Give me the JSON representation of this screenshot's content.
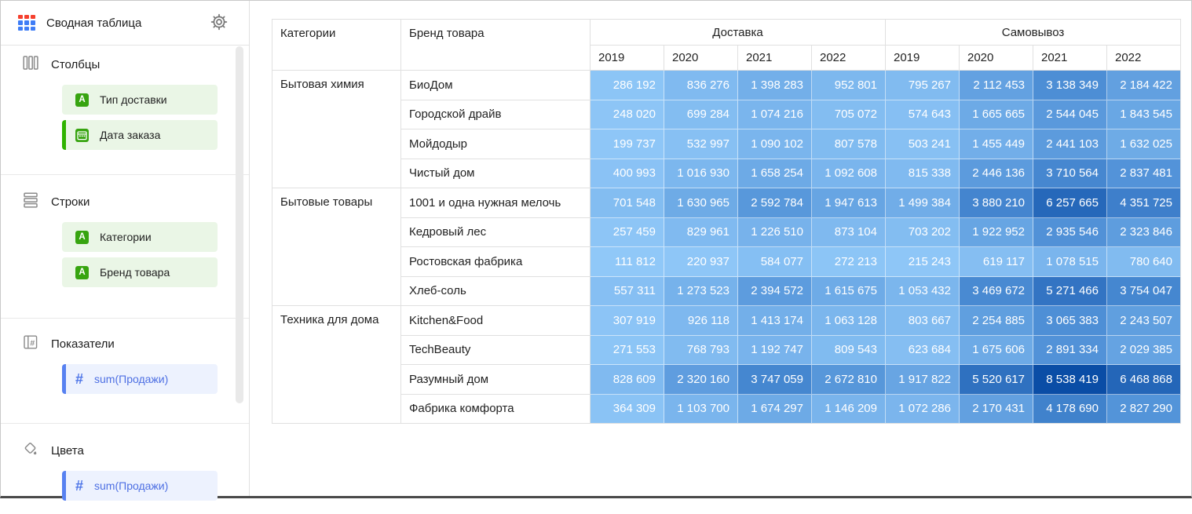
{
  "app": {
    "title": "Сводная таблица",
    "header": {
      "app_icon": "pivot-grid-icon",
      "settings_icon": "gear-icon"
    }
  },
  "sidebar": {
    "sections": [
      {
        "label": "Столбцы",
        "icon": "columns-icon",
        "fields": [
          {
            "label": "Тип доставки",
            "icon": "string-field-icon",
            "accent": false
          },
          {
            "label": "Дата заказа",
            "icon": "date-field-icon",
            "accent": true
          }
        ]
      },
      {
        "label": "Строки",
        "icon": "rows-icon",
        "fields": [
          {
            "label": "Категории",
            "icon": "string-field-icon",
            "accent": false
          },
          {
            "label": "Бренд товара",
            "icon": "string-field-icon",
            "accent": false
          }
        ]
      },
      {
        "label": "Показатели",
        "icon": "measures-icon",
        "fields": [
          {
            "label": "sum(Продажи)",
            "icon": "hash-icon",
            "accent": true
          }
        ]
      },
      {
        "label": "Цвета",
        "icon": "colors-icon",
        "fields": [
          {
            "label": "sum(Продажи)",
            "icon": "hash-icon",
            "accent": true
          }
        ]
      }
    ]
  },
  "pivot": {
    "corner_headers": [
      "Категории",
      "Бренд товара"
    ],
    "groups": [
      {
        "label": "Доставка",
        "years": [
          "2019",
          "2020",
          "2021",
          "2022"
        ]
      },
      {
        "label": "Самовывоз",
        "years": [
          "2019",
          "2020",
          "2021",
          "2022"
        ]
      }
    ],
    "menu_icon": "ellipsis-icon"
  },
  "chart_data": {
    "type": "table",
    "title": "Сводная таблица",
    "row_dimensions": [
      "Категории",
      "Бренд товара"
    ],
    "column_dimensions": [
      "Тип доставки",
      "Дата заказа"
    ],
    "measure": "sum(Продажи)",
    "column_groups": [
      "Доставка",
      "Самовывоз"
    ],
    "years": [
      "2019",
      "2020",
      "2021",
      "2022"
    ],
    "value_column_order": [
      "Доставка 2019",
      "Доставка 2020",
      "Доставка 2021",
      "Доставка 2022",
      "Самовывоз 2019",
      "Самовывоз 2020",
      "Самовывоз 2021",
      "Самовывоз 2022"
    ],
    "categories": [
      {
        "name": "Бытовая химия",
        "brands": [
          {
            "name": "БиоДом",
            "values": [
              286192,
              836276,
              1398283,
              952801,
              795267,
              2112453,
              3138349,
              2184422
            ]
          },
          {
            "name": "Городской драйв",
            "values": [
              248020,
              699284,
              1074216,
              705072,
              574643,
              1665665,
              2544045,
              1843545
            ]
          },
          {
            "name": "Мойдодыр",
            "values": [
              199737,
              532997,
              1090102,
              807578,
              503241,
              1455449,
              2441103,
              1632025
            ]
          },
          {
            "name": "Чистый дом",
            "values": [
              400993,
              1016930,
              1658254,
              1092608,
              815338,
              2446136,
              3710564,
              2837481
            ]
          }
        ]
      },
      {
        "name": "Бытовые товары",
        "brands": [
          {
            "name": "1001 и одна нужная мелочь",
            "values": [
              701548,
              1630965,
              2592784,
              1947613,
              1499384,
              3880210,
              6257665,
              4351725
            ]
          },
          {
            "name": "Кедровый лес",
            "values": [
              257459,
              829961,
              1226510,
              873104,
              703202,
              1922952,
              2935546,
              2323846
            ]
          },
          {
            "name": "Ростовская фабрика",
            "values": [
              111812,
              220937,
              584077,
              272213,
              215243,
              619117,
              1078515,
              780640
            ]
          },
          {
            "name": "Хлеб-соль",
            "values": [
              557311,
              1273523,
              2394572,
              1615675,
              1053432,
              3469672,
              5271466,
              3754047
            ]
          }
        ]
      },
      {
        "name": "Техника для дома",
        "brands": [
          {
            "name": "Kitchen&Food",
            "values": [
              307919,
              926118,
              1413174,
              1063128,
              803667,
              2254885,
              3065383,
              2243507
            ]
          },
          {
            "name": "TechBeauty",
            "values": [
              271553,
              768793,
              1192747,
              809543,
              623684,
              1675606,
              2891334,
              2029385
            ]
          },
          {
            "name": "Разумный дом",
            "values": [
              828609,
              2320160,
              3747059,
              2672810,
              1917822,
              5520617,
              8538419,
              6468868
            ]
          },
          {
            "name": "Фабрика комфорта",
            "values": [
              364309,
              1103700,
              1674297,
              1146209,
              1072286,
              2170431,
              4178690,
              2827290
            ]
          }
        ]
      }
    ],
    "color_scale": {
      "field": "sum(Продажи)",
      "min": 111812,
      "max": 8538419,
      "stops": [
        {
          "t": 0,
          "color": "#90C8F8"
        },
        {
          "t": 0.35,
          "color": "#4E8FD6"
        },
        {
          "t": 1,
          "color": "#0A4DA6"
        }
      ],
      "cell_text_color": "#FFFFFF"
    },
    "number_format": "thousands separated by space"
  },
  "colors": {
    "accent_green": "#2FB300",
    "accent_blue": "#5781F1",
    "field_badge_green": "#37A410",
    "chip_green_bg": "#EAF6E6",
    "chip_blue_bg": "#EDF2FE",
    "measure_text": "#4D6FE3",
    "grid_line": "#E0E0E0",
    "icon_gray": "#8A8A8A",
    "app_icon_red": "#F5402E",
    "app_icon_blue": "#3F7DF6"
  }
}
